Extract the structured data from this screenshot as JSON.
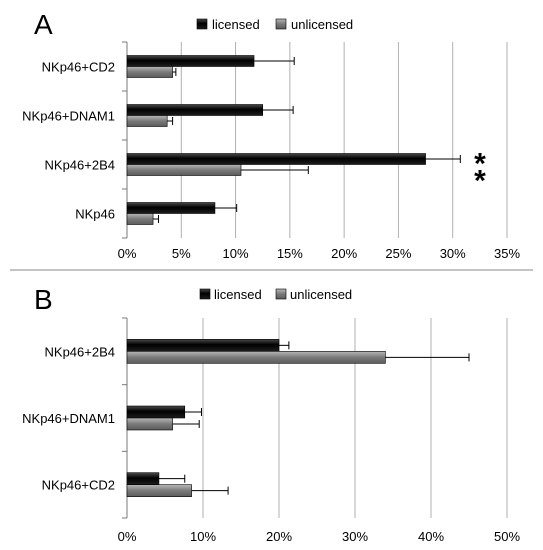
{
  "chart_data": [
    {
      "type": "bar",
      "orientation": "horizontal",
      "panel_label": "A",
      "title": "",
      "xlabel": "",
      "ylabel": "",
      "categories": [
        "NKp46+CD2",
        "NKp46+DNAM1",
        "NKp46+2B4",
        "NKp46"
      ],
      "series": [
        {
          "name": "licensed",
          "color": "#111111",
          "values": [
            11.7,
            12.5,
            27.5,
            8.1
          ],
          "errors": [
            3.7,
            2.8,
            3.2,
            2.0
          ]
        },
        {
          "name": "unlicensed",
          "color": "#7a7a7a",
          "values": [
            4.2,
            3.7,
            10.5,
            2.4
          ],
          "errors": [
            0.3,
            0.5,
            6.2,
            0.5
          ]
        }
      ],
      "xlim": [
        0,
        35
      ],
      "xticks": [
        "0%",
        "5%",
        "10%",
        "15%",
        "20%",
        "25%",
        "30%",
        "35%"
      ],
      "annotations": [
        {
          "category": "NKp46+2B4",
          "text": "**"
        }
      ],
      "grid": "vertical",
      "legend": "top"
    },
    {
      "type": "bar",
      "orientation": "horizontal",
      "panel_label": "B",
      "title": "",
      "xlabel": "",
      "ylabel": "",
      "categories": [
        "NKp46+2B4",
        "NKp46+DNAM1",
        "NKp46+CD2"
      ],
      "series": [
        {
          "name": "licensed",
          "color": "#111111",
          "values": [
            20.0,
            7.6,
            4.2
          ],
          "errors": [
            1.3,
            2.2,
            3.4
          ]
        },
        {
          "name": "unlicensed",
          "color": "#7a7a7a",
          "values": [
            34.0,
            6.0,
            8.5
          ],
          "errors": [
            11.0,
            3.5,
            4.8
          ]
        }
      ],
      "xlim": [
        0,
        50
      ],
      "xticks": [
        "0%",
        "10%",
        "20%",
        "30%",
        "40%",
        "50%"
      ],
      "annotations": [],
      "grid": "vertical",
      "legend": "top"
    }
  ]
}
